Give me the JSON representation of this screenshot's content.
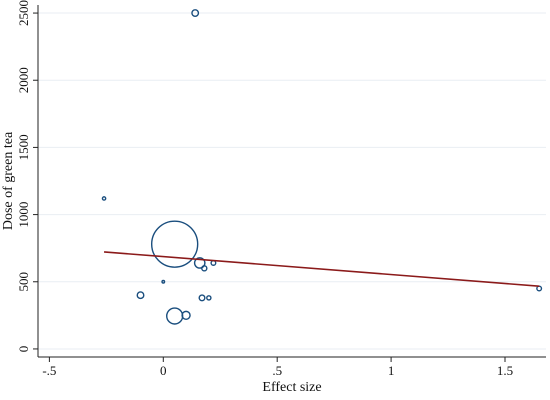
{
  "chart_data": {
    "type": "scatter",
    "title": "",
    "xlabel": "Effect size",
    "ylabel": "Dose of green tea",
    "xlim": [
      -0.55,
      1.68
    ],
    "ylim": [
      -60,
      2560
    ],
    "x_ticks": [
      -0.5,
      0,
      0.5,
      1,
      1.5
    ],
    "x_tick_labels": [
      "-.5",
      "0",
      ".5",
      "1",
      "1.5"
    ],
    "y_ticks": [
      0,
      500,
      1000,
      1500,
      2000,
      2500
    ],
    "y_tick_labels": [
      "0",
      "500",
      "1000",
      "1500",
      "2000",
      "2500"
    ],
    "grid": true,
    "legend": "none",
    "points": [
      {
        "x": 0.14,
        "y": 2500,
        "weight": 0.02
      },
      {
        "x": -0.26,
        "y": 1120,
        "weight": 0.005
      },
      {
        "x": 0.05,
        "y": 780,
        "weight": 1.0
      },
      {
        "x": 0.16,
        "y": 640,
        "weight": 0.05
      },
      {
        "x": 0.18,
        "y": 600,
        "weight": 0.012
      },
      {
        "x": 0.22,
        "y": 640,
        "weight": 0.01
      },
      {
        "x": 0.0,
        "y": 500,
        "weight": 0.003
      },
      {
        "x": -0.1,
        "y": 400,
        "weight": 0.02
      },
      {
        "x": 0.17,
        "y": 380,
        "weight": 0.015
      },
      {
        "x": 0.2,
        "y": 380,
        "weight": 0.008
      },
      {
        "x": 0.05,
        "y": 245,
        "weight": 0.12
      },
      {
        "x": 0.1,
        "y": 250,
        "weight": 0.03
      },
      {
        "x": 1.65,
        "y": 450,
        "weight": 0.01
      }
    ],
    "fit_line": {
      "x": [
        -0.26,
        1.65
      ],
      "y": [
        722,
        467
      ]
    },
    "colors": {
      "points": "#1a4e7e",
      "fit_line": "#8b1a1a",
      "grid": "#e9eef3"
    }
  }
}
